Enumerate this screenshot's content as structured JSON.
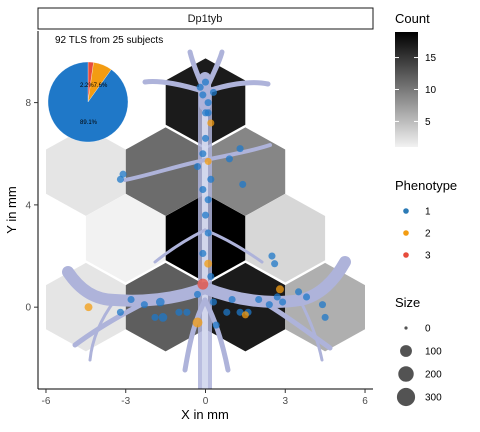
{
  "chart_data": {
    "type": "hexbin-scatter",
    "facet_label": "Dp1tyb",
    "annotation": "92 TLS from 25 subjects",
    "xlabel": "X in mm",
    "ylabel": "Y in mm",
    "xlim": [
      -6.3,
      6.3
    ],
    "ylim": [
      -3.2,
      10.8
    ],
    "x_ticks": [
      -6,
      -3,
      0,
      3,
      6
    ],
    "x_tick_labels": [
      "-6",
      "-3",
      "0",
      "3",
      "6"
    ],
    "y_ticks": [
      0,
      4,
      8
    ],
    "y_tick_labels": [
      "0",
      "4",
      "8"
    ],
    "hexbin_cells": [
      {
        "x": 0,
        "y": 8,
        "count": 17
      },
      {
        "x": -4.5,
        "y": 5.3,
        "count": 2
      },
      {
        "x": -1.5,
        "y": 5.3,
        "count": 11
      },
      {
        "x": 1.5,
        "y": 5.3,
        "count": 9
      },
      {
        "x": -3,
        "y": 2.7,
        "count": 1
      },
      {
        "x": 0,
        "y": 2.7,
        "count": 19
      },
      {
        "x": 3,
        "y": 2.7,
        "count": 3
      },
      {
        "x": -4.5,
        "y": 0,
        "count": 2
      },
      {
        "x": -1.5,
        "y": 0,
        "count": 12
      },
      {
        "x": 1.5,
        "y": 0,
        "count": 17
      },
      {
        "x": 4.5,
        "y": 0,
        "count": 6
      }
    ],
    "points": [
      {
        "x": 0.0,
        "y": 8.8,
        "phenotype": 1,
        "size": 20
      },
      {
        "x": -0.1,
        "y": 8.3,
        "phenotype": 1,
        "size": 20
      },
      {
        "x": 0.1,
        "y": 8.0,
        "phenotype": 1,
        "size": 20
      },
      {
        "x": 0.0,
        "y": 7.6,
        "phenotype": 1,
        "size": 20
      },
      {
        "x": 0.2,
        "y": 7.2,
        "phenotype": 2,
        "size": 20
      },
      {
        "x": 0.1,
        "y": 7.6,
        "phenotype": 1,
        "size": 20
      },
      {
        "x": 0.3,
        "y": 8.4,
        "phenotype": 1,
        "size": 20
      },
      {
        "x": -0.2,
        "y": 8.6,
        "phenotype": 1,
        "size": 20
      },
      {
        "x": 0.0,
        "y": 6.6,
        "phenotype": 1,
        "size": 20
      },
      {
        "x": -0.1,
        "y": 6.0,
        "phenotype": 1,
        "size": 20
      },
      {
        "x": 0.1,
        "y": 5.7,
        "phenotype": 2,
        "size": 20
      },
      {
        "x": -0.3,
        "y": 5.5,
        "phenotype": 1,
        "size": 20
      },
      {
        "x": 0.2,
        "y": 5.0,
        "phenotype": 1,
        "size": 20
      },
      {
        "x": -0.1,
        "y": 4.6,
        "phenotype": 1,
        "size": 20
      },
      {
        "x": 0.1,
        "y": 4.2,
        "phenotype": 1,
        "size": 20
      },
      {
        "x": 1.3,
        "y": 6.2,
        "phenotype": 1,
        "size": 20
      },
      {
        "x": 0.9,
        "y": 5.8,
        "phenotype": 1,
        "size": 20
      },
      {
        "x": -3.1,
        "y": 5.2,
        "phenotype": 1,
        "size": 20
      },
      {
        "x": -3.2,
        "y": 5.0,
        "phenotype": 1,
        "size": 20
      },
      {
        "x": 1.4,
        "y": 4.8,
        "phenotype": 1,
        "size": 20
      },
      {
        "x": 0.0,
        "y": 3.6,
        "phenotype": 1,
        "size": 20
      },
      {
        "x": 0.1,
        "y": 2.9,
        "phenotype": 1,
        "size": 20
      },
      {
        "x": -0.1,
        "y": 2.1,
        "phenotype": 1,
        "size": 20
      },
      {
        "x": 0.1,
        "y": 1.7,
        "phenotype": 2,
        "size": 30
      },
      {
        "x": 0.2,
        "y": 1.2,
        "phenotype": 1,
        "size": 20
      },
      {
        "x": 2.5,
        "y": 2.0,
        "phenotype": 1,
        "size": 20
      },
      {
        "x": 2.6,
        "y": 1.7,
        "phenotype": 1,
        "size": 20
      },
      {
        "x": -2.8,
        "y": 0.3,
        "phenotype": 1,
        "size": 20
      },
      {
        "x": -2.3,
        "y": 0.1,
        "phenotype": 1,
        "size": 20
      },
      {
        "x": -1.7,
        "y": 0.2,
        "phenotype": 1,
        "size": 40
      },
      {
        "x": -1.6,
        "y": -0.4,
        "phenotype": 1,
        "size": 40
      },
      {
        "x": -1.0,
        "y": -0.2,
        "phenotype": 1,
        "size": 20
      },
      {
        "x": -0.7,
        "y": -0.2,
        "phenotype": 1,
        "size": 20
      },
      {
        "x": -0.3,
        "y": 0.5,
        "phenotype": 1,
        "size": 20
      },
      {
        "x": -0.1,
        "y": 0.9,
        "phenotype": 3,
        "size": 80
      },
      {
        "x": -0.3,
        "y": -0.6,
        "phenotype": 2,
        "size": 60
      },
      {
        "x": 0.3,
        "y": 0.2,
        "phenotype": 1,
        "size": 20
      },
      {
        "x": 0.4,
        "y": -0.7,
        "phenotype": 1,
        "size": 20
      },
      {
        "x": 0.8,
        "y": -0.2,
        "phenotype": 1,
        "size": 20
      },
      {
        "x": 1.0,
        "y": 0.3,
        "phenotype": 1,
        "size": 20
      },
      {
        "x": 1.3,
        "y": -0.2,
        "phenotype": 1,
        "size": 20
      },
      {
        "x": 1.6,
        "y": -0.2,
        "phenotype": 1,
        "size": 20
      },
      {
        "x": 1.5,
        "y": -0.3,
        "phenotype": 2,
        "size": 20
      },
      {
        "x": 2.0,
        "y": 0.3,
        "phenotype": 1,
        "size": 20
      },
      {
        "x": 2.4,
        "y": 0.1,
        "phenotype": 1,
        "size": 20
      },
      {
        "x": 2.7,
        "y": 0.4,
        "phenotype": 1,
        "size": 20
      },
      {
        "x": 2.8,
        "y": 0.7,
        "phenotype": 2,
        "size": 30
      },
      {
        "x": 2.9,
        "y": 0.2,
        "phenotype": 1,
        "size": 20
      },
      {
        "x": 3.5,
        "y": 0.6,
        "phenotype": 1,
        "size": 20
      },
      {
        "x": 3.8,
        "y": 0.4,
        "phenotype": 1,
        "size": 20
      },
      {
        "x": 4.4,
        "y": 0.1,
        "phenotype": 1,
        "size": 20
      },
      {
        "x": 4.5,
        "y": -0.4,
        "phenotype": 1,
        "size": 20
      },
      {
        "x": -4.4,
        "y": 0.0,
        "phenotype": 2,
        "size": 30
      },
      {
        "x": -3.2,
        "y": -0.2,
        "phenotype": 1,
        "size": 20
      },
      {
        "x": -1.9,
        "y": -0.4,
        "phenotype": 1,
        "size": 20
      }
    ],
    "inset_pie": {
      "slices": [
        {
          "label": "89.1%",
          "value": 89.1,
          "phenotype": 1
        },
        {
          "label": "7.6%",
          "value": 7.6,
          "phenotype": 2
        },
        {
          "label": "2.2%",
          "value": 2.2,
          "phenotype": 3
        }
      ],
      "label_text": "2.2%7.6%"
    },
    "legends": {
      "count": {
        "title": "Count",
        "min": 1,
        "max": 19,
        "ticks": [
          5,
          10,
          15
        ],
        "tick_labels": [
          "5",
          "10",
          "15"
        ],
        "low_color": "#f2f2f2",
        "high_color": "#000000"
      },
      "phenotype": {
        "title": "Phenotype",
        "items": [
          {
            "label": "1",
            "color": "#2c7bb6"
          },
          {
            "label": "2",
            "color": "#f39c12"
          },
          {
            "label": "3",
            "color": "#e74c3c"
          }
        ]
      },
      "size": {
        "title": "Size",
        "items": [
          {
            "label": "0",
            "value": 0
          },
          {
            "label": "100",
            "value": 100
          },
          {
            "label": "200",
            "value": 200
          },
          {
            "label": "300",
            "value": 300
          }
        ]
      }
    },
    "colors": {
      "phenotype_1": "#1f78c8",
      "phenotype_2": "#f39c12",
      "phenotype_3": "#e74c3c",
      "airway": "#b9bfe0"
    }
  }
}
